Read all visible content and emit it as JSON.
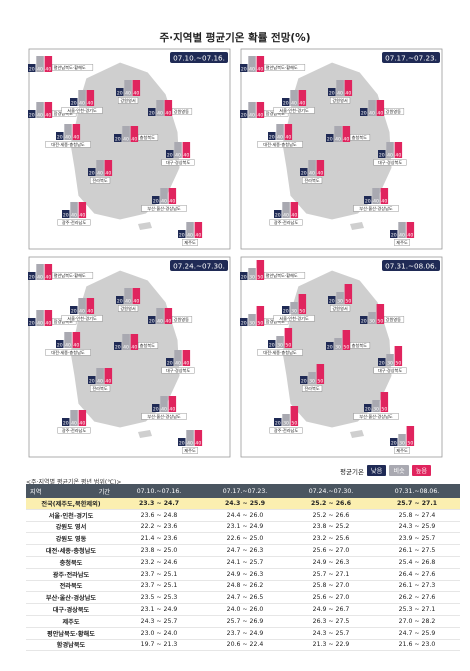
{
  "title": "주·지역별 평균기온 확률 전망(%)",
  "legend": {
    "label": "평균기온",
    "items": [
      {
        "name": "낮음",
        "color": "#1f2a55"
      },
      {
        "name": "비슷",
        "color": "#a9a9b1"
      },
      {
        "name": "높음",
        "color": "#e0245e"
      }
    ]
  },
  "table_note": "<주·지역별 평균기온 평년 범위(℃)>",
  "table": {
    "header_region": "지역",
    "header_period": "기간",
    "periods": [
      "07.10.~07.16.",
      "07.17.~07.23.",
      "07.24.~07.30.",
      "07.31.~08.06."
    ],
    "rows": [
      {
        "region": "전국(제주도,북한제외)",
        "v": [
          "23.3 ~ 24.7",
          "24.3 ~ 25.9",
          "25.2 ~ 26.6",
          "25.7 ~ 27.1"
        ]
      },
      {
        "region": "서울·인천·경기도",
        "v": [
          "23.6 ~ 24.8",
          "24.4 ~ 26.0",
          "25.2 ~ 26.6",
          "25.8 ~ 27.4"
        ]
      },
      {
        "region": "강원도 영서",
        "v": [
          "22.2 ~ 23.6",
          "23.1 ~ 24.9",
          "23.8 ~ 25.2",
          "24.3 ~ 25.9"
        ]
      },
      {
        "region": "강원도 영동",
        "v": [
          "21.4 ~ 23.6",
          "22.6 ~ 25.0",
          "23.2 ~ 25.6",
          "23.9 ~ 25.7"
        ]
      },
      {
        "region": "대전·세종·충청남도",
        "v": [
          "23.8 ~ 25.0",
          "24.7 ~ 26.3",
          "25.6 ~ 27.0",
          "26.1 ~ 27.5"
        ]
      },
      {
        "region": "충청북도",
        "v": [
          "23.2 ~ 24.6",
          "24.1 ~ 25.7",
          "24.9 ~ 26.3",
          "25.4 ~ 26.8"
        ]
      },
      {
        "region": "광주·전라남도",
        "v": [
          "23.7 ~ 25.1",
          "24.9 ~ 26.3",
          "25.7 ~ 27.1",
          "26.4 ~ 27.6"
        ]
      },
      {
        "region": "전라북도",
        "v": [
          "23.7 ~ 25.1",
          "24.8 ~ 26.2",
          "25.8 ~ 27.0",
          "26.1 ~ 27.3"
        ]
      },
      {
        "region": "부산·울산·경상남도",
        "v": [
          "23.5 ~ 25.3",
          "24.7 ~ 26.5",
          "25.6 ~ 27.0",
          "26.2 ~ 27.6"
        ]
      },
      {
        "region": "대구·경상북도",
        "v": [
          "23.1 ~ 24.9",
          "24.0 ~ 26.0",
          "24.9 ~ 26.7",
          "25.3 ~ 27.1"
        ]
      },
      {
        "region": "제주도",
        "v": [
          "24.3 ~ 25.7",
          "25.7 ~ 26.9",
          "26.3 ~ 27.5",
          "27.0 ~ 28.2"
        ]
      },
      {
        "region": "평안남북도·황해도",
        "v": [
          "23.0 ~ 24.0",
          "23.7 ~ 24.9",
          "24.3 ~ 25.7",
          "24.7 ~ 25.9"
        ]
      },
      {
        "region": "함경남북도",
        "v": [
          "19.7 ~ 21.3",
          "20.6 ~ 22.4",
          "21.3 ~ 22.9",
          "21.6 ~ 23.0"
        ]
      }
    ]
  },
  "chart_data": {
    "type": "bar",
    "title": "주·지역별 평균기온 확률 전망(%)",
    "categories": [
      "낮음",
      "비슷",
      "높음"
    ],
    "colors": {
      "low": "#1f2a55",
      "similar": "#a9a9b1",
      "high": "#e0245e"
    },
    "region_labels": {
      "pyeongan": "평안남북도·황해도",
      "hamgyeong": "함경남북도",
      "seoul": "서울·인천·경기도",
      "yeongseo": "강원영서",
      "yeongdong": "강원영동",
      "daejeon": "대전·세종·충청남도",
      "chungbuk": "충청북도",
      "daegu": "대구·경상북도",
      "jeonbuk": "전라북도",
      "busan": "부산·울산·경상남도",
      "gwangju": "광주·전라남도",
      "jeju": "제주도"
    },
    "panels": [
      {
        "period": "07.10.~07.16.",
        "regions": {
          "pyeongan": [
            20,
            40,
            40
          ],
          "hamgyeong": [
            20,
            40,
            40
          ],
          "seoul": [
            20,
            40,
            40
          ],
          "yeongseo": [
            20,
            40,
            40
          ],
          "yeongdong": [
            20,
            40,
            40
          ],
          "daejeon": [
            20,
            40,
            40
          ],
          "chungbuk": [
            20,
            40,
            40
          ],
          "daegu": [
            20,
            40,
            40
          ],
          "jeonbuk": [
            20,
            40,
            40
          ],
          "busan": [
            20,
            40,
            40
          ],
          "gwangju": [
            20,
            40,
            40
          ],
          "jeju": [
            20,
            40,
            40
          ]
        }
      },
      {
        "period": "07.17.~07.23.",
        "regions": {
          "pyeongan": [
            20,
            40,
            40
          ],
          "hamgyeong": [
            20,
            40,
            40
          ],
          "seoul": [
            20,
            40,
            40
          ],
          "yeongseo": [
            20,
            40,
            40
          ],
          "yeongdong": [
            20,
            40,
            40
          ],
          "daejeon": [
            20,
            40,
            40
          ],
          "chungbuk": [
            20,
            40,
            40
          ],
          "daegu": [
            20,
            40,
            40
          ],
          "jeonbuk": [
            20,
            40,
            40
          ],
          "busan": [
            20,
            40,
            40
          ],
          "gwangju": [
            20,
            40,
            40
          ],
          "jeju": [
            20,
            40,
            40
          ]
        }
      },
      {
        "period": "07.24.~07.30.",
        "regions": {
          "pyeongan": [
            20,
            40,
            40
          ],
          "hamgyeong": [
            20,
            40,
            40
          ],
          "seoul": [
            20,
            40,
            40
          ],
          "yeongseo": [
            20,
            40,
            40
          ],
          "yeongdong": [
            20,
            40,
            40
          ],
          "daejeon": [
            20,
            40,
            40
          ],
          "chungbuk": [
            20,
            40,
            40
          ],
          "daegu": [
            20,
            40,
            40
          ],
          "jeonbuk": [
            20,
            40,
            40
          ],
          "busan": [
            20,
            40,
            40
          ],
          "gwangju": [
            20,
            40,
            40
          ],
          "jeju": [
            20,
            40,
            40
          ]
        }
      },
      {
        "period": "07.31.~08.06.",
        "regions": {
          "pyeongan": [
            20,
            30,
            50
          ],
          "hamgyeong": [
            20,
            30,
            50
          ],
          "seoul": [
            20,
            30,
            50
          ],
          "yeongseo": [
            20,
            30,
            50
          ],
          "yeongdong": [
            20,
            30,
            50
          ],
          "daejeon": [
            20,
            30,
            50
          ],
          "chungbuk": [
            20,
            30,
            50
          ],
          "daegu": [
            20,
            30,
            50
          ],
          "jeonbuk": [
            20,
            30,
            50
          ],
          "busan": [
            20,
            30,
            50
          ],
          "gwangju": [
            20,
            30,
            50
          ],
          "jeju": [
            20,
            30,
            50
          ]
        }
      }
    ]
  }
}
